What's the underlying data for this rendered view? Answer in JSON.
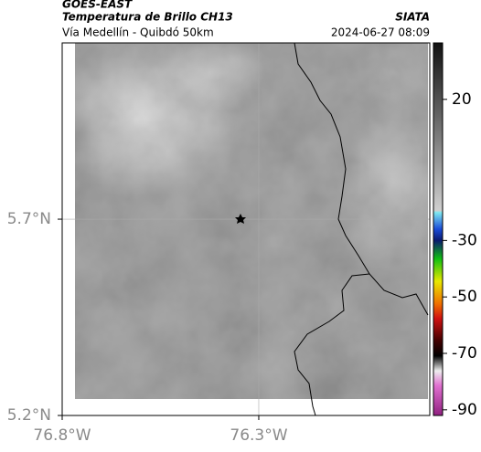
{
  "header": {
    "satellite": "GOES-EAST",
    "product": "Temperatura de Brillo CH13",
    "source": "SIATA",
    "route": "Vía Medellín - Quibdó 50km",
    "timestamp": "2024-06-27 08:09"
  },
  "map": {
    "xlim": [
      -76.8,
      -75.865
    ],
    "ylim": [
      5.2,
      6.149
    ],
    "xticks": [
      {
        "value": -76.8,
        "label": "76.8°W"
      },
      {
        "value": -76.3,
        "label": "76.3°W"
      }
    ],
    "yticks": [
      {
        "value": 5.2,
        "label": "5.2°N"
      },
      {
        "value": 5.7,
        "label": "5.7°N"
      }
    ]
  },
  "colorbar": {
    "lim": [
      -92,
      40
    ],
    "ticks": [
      20,
      -30,
      -50,
      -70,
      -90
    ]
  }
}
